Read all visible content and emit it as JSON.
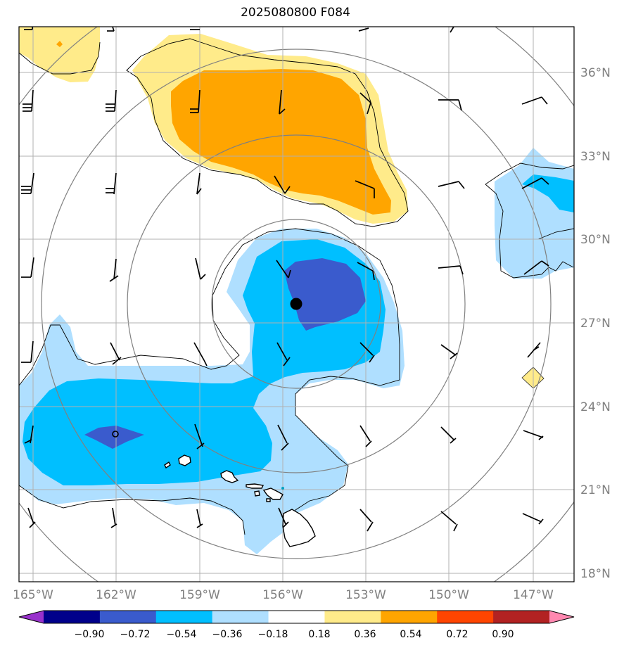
{
  "title": "2025080800 F084",
  "lon_ticks": [
    "165°W",
    "162°W",
    "159°W",
    "156°W",
    "153°W",
    "150°W",
    "147°W"
  ],
  "lat_ticks": [
    "36°N",
    "33°N",
    "30°N",
    "27°N",
    "24°N",
    "21°N",
    "18°N"
  ],
  "colorbar": {
    "ticks": [
      "−0.90",
      "−0.72",
      "−0.54",
      "−0.36",
      "−0.18",
      "0.18",
      "0.36",
      "0.54",
      "0.72",
      "0.90"
    ],
    "colors": [
      "#9932cc",
      "#00008b",
      "#3a5bcd",
      "#00bfff",
      "#afdfff",
      "#ffffff",
      "#ffeb8a",
      "#ffa500",
      "#ff4500",
      "#b22222",
      "#ff88b0"
    ]
  },
  "colors": {
    "light_blue": "#afdfff",
    "medium_blue": "#00bfff",
    "dark_blue": "#3a5bcd",
    "light_yellow": "#ffeb8a",
    "orange": "#ffa500",
    "grid": "#b0b0b0",
    "range_ring": "#808080"
  }
}
